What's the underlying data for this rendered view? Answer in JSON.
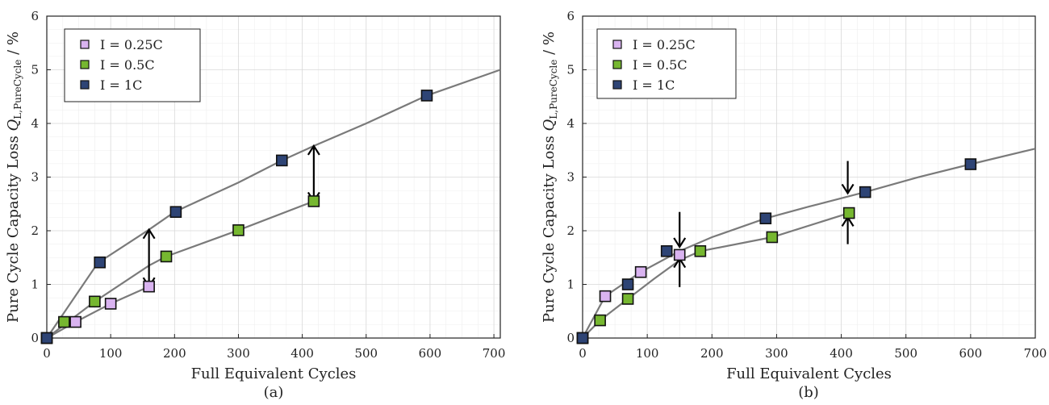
{
  "colors": {
    "series_025C": "#d9b3f0",
    "series_05C": "#76b730",
    "series_1C": "#2e4475",
    "fit_line": "#7a7a7a"
  },
  "chart_data": [
    {
      "type": "scatter",
      "panel_label": "(a)",
      "xlabel": "Full Equivalent Cycles",
      "ylabel_main": "Pure Cycle Capacity Loss",
      "ylabel_symbol": "Q",
      "ylabel_subscript": "L,PureCycle",
      "ylabel_unit": "/ %",
      "xlim": [
        0,
        710
      ],
      "ylim": [
        0,
        6
      ],
      "xticks": [
        0,
        100,
        200,
        300,
        400,
        500,
        600,
        700
      ],
      "yticks": [
        0,
        1,
        2,
        3,
        4,
        5,
        6
      ],
      "grid": true,
      "legend_position": "top-left",
      "series": [
        {
          "name": "I = 0.25C",
          "color_key": "series_025C",
          "x": [
            0,
            45,
            100,
            160
          ],
          "y": [
            0,
            0.3,
            0.64,
            0.96
          ]
        },
        {
          "name": "I = 0.5C",
          "color_key": "series_05C",
          "x": [
            0,
            27,
            75,
            187,
            300,
            418
          ],
          "y": [
            0,
            0.3,
            0.68,
            1.52,
            2.01,
            2.55
          ]
        },
        {
          "name": "I = 1C",
          "color_key": "series_1C",
          "x": [
            0,
            83,
            202,
            368,
            595
          ],
          "y": [
            0,
            1.41,
            2.35,
            3.31,
            4.52
          ]
        }
      ],
      "fit_lines": [
        {
          "x": [
            0,
            80,
            160,
            200,
            300,
            368,
            418,
            500,
            595,
            710
          ],
          "y": [
            0,
            1.4,
            2.02,
            2.35,
            2.9,
            3.31,
            3.58,
            4.0,
            4.52,
            5.0
          ]
        },
        {
          "x": [
            0,
            75,
            160,
            187,
            300,
            418
          ],
          "y": [
            0,
            0.68,
            1.35,
            1.52,
            2.01,
            2.55
          ]
        },
        {
          "x": [
            0,
            45,
            100,
            160
          ],
          "y": [
            0,
            0.3,
            0.64,
            0.96
          ]
        }
      ],
      "arrows": [
        {
          "x": 160,
          "y_from": 1.5,
          "y_to": 2.02,
          "double": true,
          "y_mid_from": 1.5,
          "y_low": 0.96,
          "y_high": 2.02
        },
        {
          "x": 418,
          "y_low": 2.55,
          "y_high": 3.58
        }
      ]
    },
    {
      "type": "scatter",
      "panel_label": "(b)",
      "xlabel": "Full Equivalent Cycles",
      "ylabel_main": "Pure Cycle Capacity Loss",
      "ylabel_symbol": "Q",
      "ylabel_subscript": "L,PureCycle",
      "ylabel_unit": "/ %",
      "xlim": [
        0,
        700
      ],
      "ylim": [
        0,
        6
      ],
      "xticks": [
        0,
        100,
        200,
        300,
        400,
        500,
        600,
        700
      ],
      "yticks": [
        0,
        1,
        2,
        3,
        4,
        5,
        6
      ],
      "grid": true,
      "legend_position": "top-left",
      "series": [
        {
          "name": "I = 0.25C",
          "color_key": "series_025C",
          "x": [
            0,
            35,
            90,
            150
          ],
          "y": [
            0,
            0.78,
            1.23,
            1.55
          ]
        },
        {
          "name": "I = 0.5C",
          "color_key": "series_05C",
          "x": [
            0,
            27,
            70,
            182,
            293,
            412
          ],
          "y": [
            0,
            0.33,
            0.73,
            1.62,
            1.88,
            2.33
          ]
        },
        {
          "name": "I = 1C",
          "color_key": "series_1C",
          "x": [
            0,
            70,
            130,
            283,
            437,
            600
          ],
          "y": [
            0,
            1.0,
            1.62,
            2.23,
            2.72,
            3.24
          ]
        }
      ],
      "fit_lines": [
        {
          "x": [
            0,
            35,
            90,
            150,
            200,
            283,
            350,
            437,
            520,
            600,
            700
          ],
          "y": [
            0,
            0.78,
            1.23,
            1.62,
            1.88,
            2.23,
            2.45,
            2.72,
            3.0,
            3.24,
            3.53
          ]
        },
        {
          "x": [
            0,
            27,
            70,
            110,
            150,
            182,
            293,
            412
          ],
          "y": [
            0,
            0.33,
            0.73,
            1.1,
            1.45,
            1.62,
            1.88,
            2.33
          ]
        }
      ],
      "arrows": [
        {
          "x": 150,
          "y_from": 2.35,
          "y_to": 1.7,
          "single": true
        },
        {
          "x": 150,
          "y_from": 0.95,
          "y_to": 1.48,
          "single": true
        },
        {
          "x": 410,
          "y_from": 3.3,
          "y_to": 2.7,
          "single": true
        },
        {
          "x": 410,
          "y_from": 1.75,
          "y_to": 2.25,
          "single": true
        }
      ]
    }
  ]
}
